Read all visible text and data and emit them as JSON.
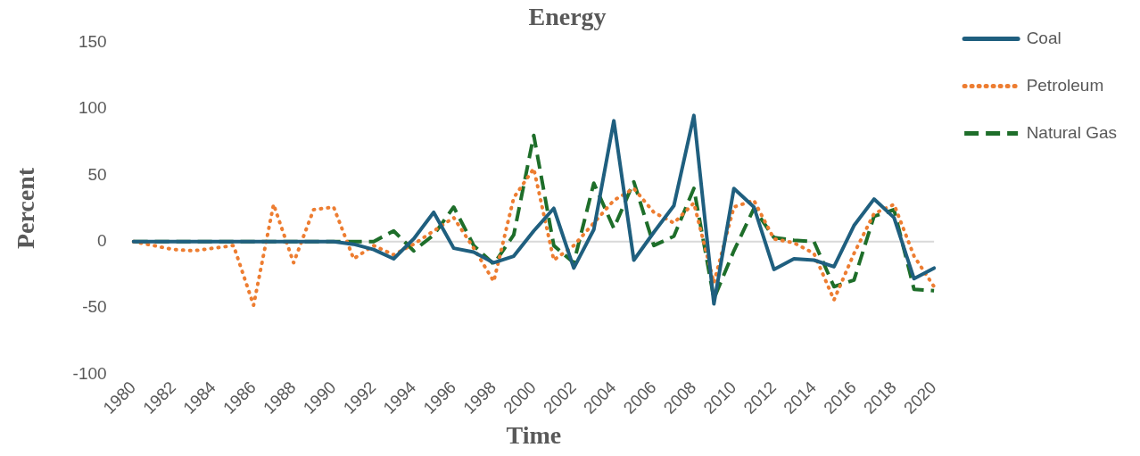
{
  "chart_data": {
    "type": "line",
    "title": "Energy",
    "xlabel": "Time",
    "ylabel": "Percent",
    "categories": [
      "1980",
      null,
      "1982",
      null,
      "1984",
      null,
      "1986",
      null,
      "1988",
      null,
      "1990",
      null,
      "1992",
      null,
      "1994",
      null,
      "1996",
      null,
      "1998",
      null,
      "2000",
      null,
      "2002",
      null,
      "2004",
      null,
      "2006",
      null,
      "2008",
      null,
      "2010",
      null,
      "2012",
      null,
      "2014",
      null,
      "2016",
      null,
      "2018",
      null,
      "2020"
    ],
    "series": [
      {
        "name": "Coal",
        "color": "#1f5f7f",
        "line_style": "solid",
        "values": [
          0,
          0,
          0,
          0,
          0,
          0,
          0,
          0,
          0,
          0,
          0,
          -2,
          -6,
          -13,
          2,
          22,
          -5,
          -8,
          -16,
          -11,
          8,
          25,
          -20,
          9,
          91,
          -14,
          7,
          27,
          95,
          -47,
          40,
          26,
          -21,
          -13,
          -14,
          -19,
          12,
          32,
          18,
          -28,
          -20
        ]
      },
      {
        "name": "Petroleum",
        "color": "#ed7d31",
        "line_style": "dotted",
        "values": [
          0,
          -3,
          -6,
          -7,
          -5,
          -3,
          -48,
          28,
          -16,
          24,
          26,
          -13,
          -3,
          -10,
          -2,
          8,
          18,
          -5,
          -30,
          33,
          55,
          -14,
          -3,
          14,
          31,
          40,
          22,
          14,
          29,
          -31,
          26,
          31,
          2,
          -1,
          -9,
          -44,
          -9,
          21,
          28,
          -11,
          -34
        ]
      },
      {
        "name": "Natural Gas",
        "color": "#1e6e2a",
        "line_style": "dashed",
        "values": [
          0,
          0,
          0,
          0,
          0,
          0,
          0,
          0,
          0,
          0,
          0,
          0,
          0,
          8,
          -7,
          5,
          26,
          -3,
          -17,
          5,
          80,
          -3,
          -16,
          44,
          10,
          45,
          -3,
          4,
          40,
          -43,
          -7,
          25,
          3,
          1,
          0,
          -34,
          -29,
          19,
          24,
          -36,
          -37
        ]
      }
    ],
    "ref_lines": [
      {
        "axis": "y",
        "value": 0,
        "color": "#d9d9d9"
      }
    ],
    "ylim": [
      -100,
      150
    ],
    "yticks": [
      -100,
      -50,
      0,
      50,
      100,
      150
    ],
    "grid": false,
    "legend": "top right",
    "marker": "none"
  }
}
